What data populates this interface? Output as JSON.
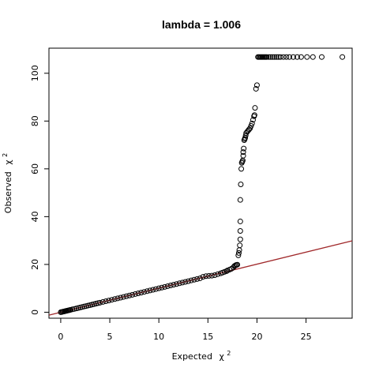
{
  "chart_data": {
    "type": "scatter",
    "title": "lambda = 1.006",
    "xlabel": "Expected",
    "xlabel_symbol": "χ",
    "xlabel_sup": "2",
    "ylabel": "Observed",
    "ylabel_symbol": "χ",
    "ylabel_sup": "2",
    "xlim": [
      -1.2,
      29.7
    ],
    "ylim": [
      -2.5,
      110.5
    ],
    "x_ticks": [
      0,
      5,
      10,
      15,
      20,
      25
    ],
    "y_ticks": [
      0,
      20,
      40,
      60,
      80,
      100
    ],
    "grid": false,
    "legend": "none",
    "point_color": "#000000",
    "reference_line": {
      "intercept": 0,
      "slope": 1.006,
      "color": "#a0282a"
    },
    "points": [
      [
        0.0,
        0.0
      ],
      [
        0.1,
        0.1
      ],
      [
        0.2,
        0.2
      ],
      [
        0.3,
        0.3
      ],
      [
        0.4,
        0.4
      ],
      [
        0.5,
        0.5
      ],
      [
        0.6,
        0.6
      ],
      [
        0.7,
        0.7
      ],
      [
        0.8,
        0.8
      ],
      [
        0.9,
        0.9
      ],
      [
        1.0,
        1.0
      ],
      [
        1.2,
        1.2
      ],
      [
        1.4,
        1.4
      ],
      [
        1.6,
        1.6
      ],
      [
        1.8,
        1.8
      ],
      [
        2.0,
        2.0
      ],
      [
        2.2,
        2.2
      ],
      [
        2.4,
        2.4
      ],
      [
        2.6,
        2.6
      ],
      [
        2.8,
        2.8
      ],
      [
        3.0,
        3.0
      ],
      [
        3.2,
        3.2
      ],
      [
        3.4,
        3.4
      ],
      [
        3.6,
        3.6
      ],
      [
        3.8,
        3.8
      ],
      [
        4.0,
        4.0
      ],
      [
        4.3,
        4.3
      ],
      [
        4.6,
        4.6
      ],
      [
        4.9,
        4.9
      ],
      [
        5.2,
        5.2
      ],
      [
        5.5,
        5.5
      ],
      [
        5.8,
        5.8
      ],
      [
        6.1,
        6.1
      ],
      [
        6.4,
        6.4
      ],
      [
        6.7,
        6.7
      ],
      [
        7.0,
        7.0
      ],
      [
        7.3,
        7.3
      ],
      [
        7.6,
        7.6
      ],
      [
        7.9,
        7.9
      ],
      [
        8.2,
        8.2
      ],
      [
        8.5,
        8.5
      ],
      [
        8.8,
        8.8
      ],
      [
        9.1,
        9.1
      ],
      [
        9.4,
        9.4
      ],
      [
        9.7,
        9.7
      ],
      [
        10.0,
        10.0
      ],
      [
        10.3,
        10.3
      ],
      [
        10.6,
        10.6
      ],
      [
        10.9,
        10.9
      ],
      [
        11.2,
        11.2
      ],
      [
        11.5,
        11.5
      ],
      [
        11.8,
        11.8
      ],
      [
        12.1,
        12.1
      ],
      [
        12.4,
        12.4
      ],
      [
        12.7,
        12.7
      ],
      [
        13.0,
        13.0
      ],
      [
        13.3,
        13.3
      ],
      [
        13.6,
        13.6
      ],
      [
        13.9,
        13.9
      ],
      [
        14.2,
        14.2
      ],
      [
        14.5,
        14.8
      ],
      [
        14.8,
        15.1
      ],
      [
        15.1,
        15.2
      ],
      [
        15.4,
        15.3
      ],
      [
        15.7,
        15.5
      ],
      [
        16.0,
        15.9
      ],
      [
        16.3,
        16.3
      ],
      [
        16.5,
        16.6
      ],
      [
        16.7,
        16.9
      ],
      [
        16.9,
        17.2
      ],
      [
        17.0,
        17.5
      ],
      [
        17.2,
        17.8
      ],
      [
        17.4,
        18.2
      ],
      [
        17.6,
        18.8
      ],
      [
        17.7,
        19.3
      ],
      [
        17.8,
        19.6
      ],
      [
        17.9,
        19.8
      ],
      [
        18.0,
        19.9
      ],
      [
        18.1,
        23.8
      ],
      [
        18.15,
        24.8
      ],
      [
        18.2,
        26.0
      ],
      [
        18.25,
        28.0
      ],
      [
        18.3,
        30.5
      ],
      [
        18.3,
        34.0
      ],
      [
        18.3,
        38.0
      ],
      [
        18.3,
        47.0
      ],
      [
        18.35,
        53.5
      ],
      [
        18.4,
        60.0
      ],
      [
        18.45,
        62.5
      ],
      [
        18.5,
        63.0
      ],
      [
        18.55,
        63.5
      ],
      [
        18.6,
        65.5
      ],
      [
        18.6,
        67.0
      ],
      [
        18.65,
        68.5
      ],
      [
        18.7,
        72.0
      ],
      [
        18.75,
        72.5
      ],
      [
        18.8,
        73.0
      ],
      [
        18.85,
        74.0
      ],
      [
        18.9,
        75.0
      ],
      [
        19.0,
        75.5
      ],
      [
        19.1,
        76.0
      ],
      [
        19.2,
        76.5
      ],
      [
        19.3,
        77.0
      ],
      [
        19.4,
        78.0
      ],
      [
        19.5,
        79.0
      ],
      [
        19.6,
        80.5
      ],
      [
        19.7,
        82.0
      ],
      [
        19.75,
        82.5
      ],
      [
        19.8,
        85.5
      ],
      [
        19.9,
        93.5
      ],
      [
        20.0,
        95.0
      ],
      [
        20.1,
        106.8
      ],
      [
        20.2,
        106.8
      ],
      [
        20.3,
        106.8
      ],
      [
        20.4,
        106.8
      ],
      [
        20.5,
        106.8
      ],
      [
        20.6,
        106.8
      ],
      [
        20.7,
        106.8
      ],
      [
        20.8,
        106.8
      ],
      [
        20.9,
        106.8
      ],
      [
        21.0,
        106.8
      ],
      [
        21.2,
        106.8
      ],
      [
        21.4,
        106.8
      ],
      [
        21.6,
        106.8
      ],
      [
        21.8,
        106.8
      ],
      [
        22.0,
        106.8
      ],
      [
        22.2,
        106.8
      ],
      [
        22.4,
        106.8
      ],
      [
        22.7,
        106.8
      ],
      [
        23.0,
        106.8
      ],
      [
        23.3,
        106.8
      ],
      [
        23.7,
        106.8
      ],
      [
        24.1,
        106.8
      ],
      [
        24.5,
        106.8
      ],
      [
        25.1,
        106.8
      ],
      [
        25.7,
        106.8
      ],
      [
        26.6,
        106.8
      ],
      [
        28.7,
        106.8
      ]
    ]
  }
}
